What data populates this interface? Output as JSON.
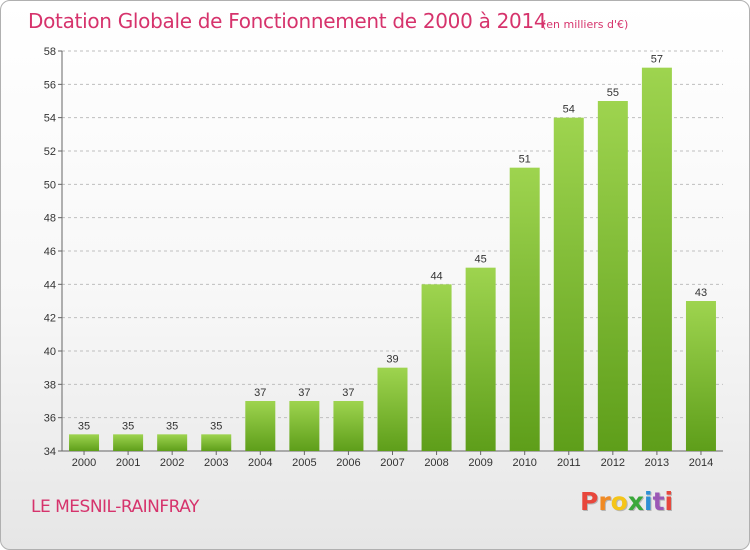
{
  "title": "Dotation Globale de Fonctionnement de 2000 à 2014",
  "subtitle": "(en milliers d'€)",
  "commune": "LE MESNIL-RAINFRAY",
  "brand": {
    "letters": [
      "P",
      "r",
      "o",
      "x",
      "i",
      "t",
      "i"
    ],
    "colors": [
      "#e8473c",
      "#f08a24",
      "#f5c518",
      "#3aa83a",
      "#2d8fd5",
      "#9b59b6",
      "#e8473c"
    ]
  },
  "colors": {
    "bar": "#7cbd2c",
    "bar_light": "#9ed44f",
    "bar_dark": "#5e9e1a",
    "title": "#d6336c",
    "grid": "#bfbfbf"
  },
  "chart_data": {
    "type": "bar",
    "title": "Dotation Globale de Fonctionnement de 2000 à 2014",
    "subtitle": "(en milliers d'€)",
    "xlabel": "",
    "ylabel": "",
    "categories": [
      "2000",
      "2001",
      "2002",
      "2003",
      "2004",
      "2005",
      "2006",
      "2007",
      "2008",
      "2009",
      "2010",
      "2011",
      "2012",
      "2013",
      "2014"
    ],
    "values": [
      35,
      35,
      35,
      35,
      37,
      37,
      37,
      39,
      44,
      45,
      51,
      54,
      55,
      57,
      43
    ],
    "ylim": [
      34,
      58
    ],
    "yticks": [
      34,
      36,
      38,
      40,
      42,
      44,
      46,
      48,
      50,
      52,
      54,
      56,
      58
    ],
    "grid": "horizontal dashed",
    "legend": "none"
  }
}
